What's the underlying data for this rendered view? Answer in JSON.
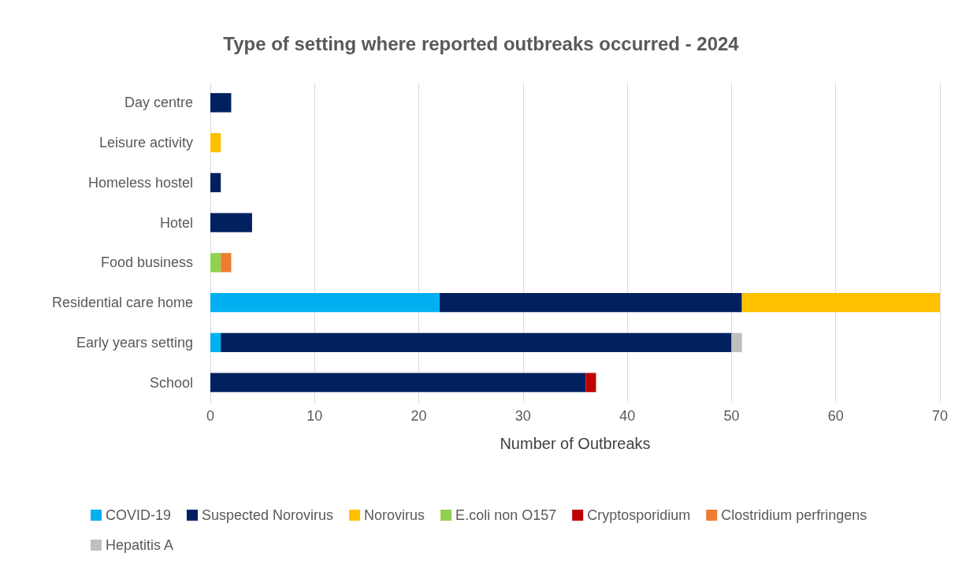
{
  "chart_data": {
    "type": "bar",
    "title": "Type of setting where reported outbreaks occurred - 2024",
    "xlabel": "Number of Outbreaks",
    "orientation": "horizontal",
    "stacked": true,
    "categories": [
      "Day centre",
      "Leisure activity",
      "Homeless hostel",
      "Hotel",
      "Food business",
      "Residential care home",
      "Early years setting",
      "School"
    ],
    "series": [
      {
        "name": "COVID-19",
        "color": "#00b0f0",
        "values": [
          null,
          null,
          null,
          null,
          null,
          22,
          1,
          null
        ]
      },
      {
        "name": "Suspected Norovirus",
        "color": "#002060",
        "values": [
          2,
          null,
          1,
          4,
          null,
          29,
          49,
          36
        ]
      },
      {
        "name": "Norovirus",
        "color": "#ffc000",
        "values": [
          null,
          1,
          null,
          null,
          null,
          19,
          null,
          null
        ]
      },
      {
        "name": "E.coli non O157",
        "color": "#92d050",
        "values": [
          null,
          null,
          null,
          null,
          1,
          null,
          null,
          null
        ]
      },
      {
        "name": "Cryptosporidium",
        "color": "#c00000",
        "values": [
          null,
          null,
          null,
          null,
          null,
          null,
          null,
          1
        ]
      },
      {
        "name": "Clostridium perfringens",
        "color": "#ed7d31",
        "values": [
          null,
          null,
          null,
          null,
          1,
          null,
          null,
          null
        ]
      },
      {
        "name": "Hepatitis A",
        "color": "#bfbfbf",
        "values": [
          null,
          null,
          null,
          null,
          null,
          null,
          1,
          null
        ]
      }
    ],
    "xlim": [
      0,
      70
    ],
    "xticks": [
      0,
      10,
      20,
      30,
      40,
      50,
      60,
      70
    ],
    "grid": "x",
    "legend": "bottom"
  }
}
